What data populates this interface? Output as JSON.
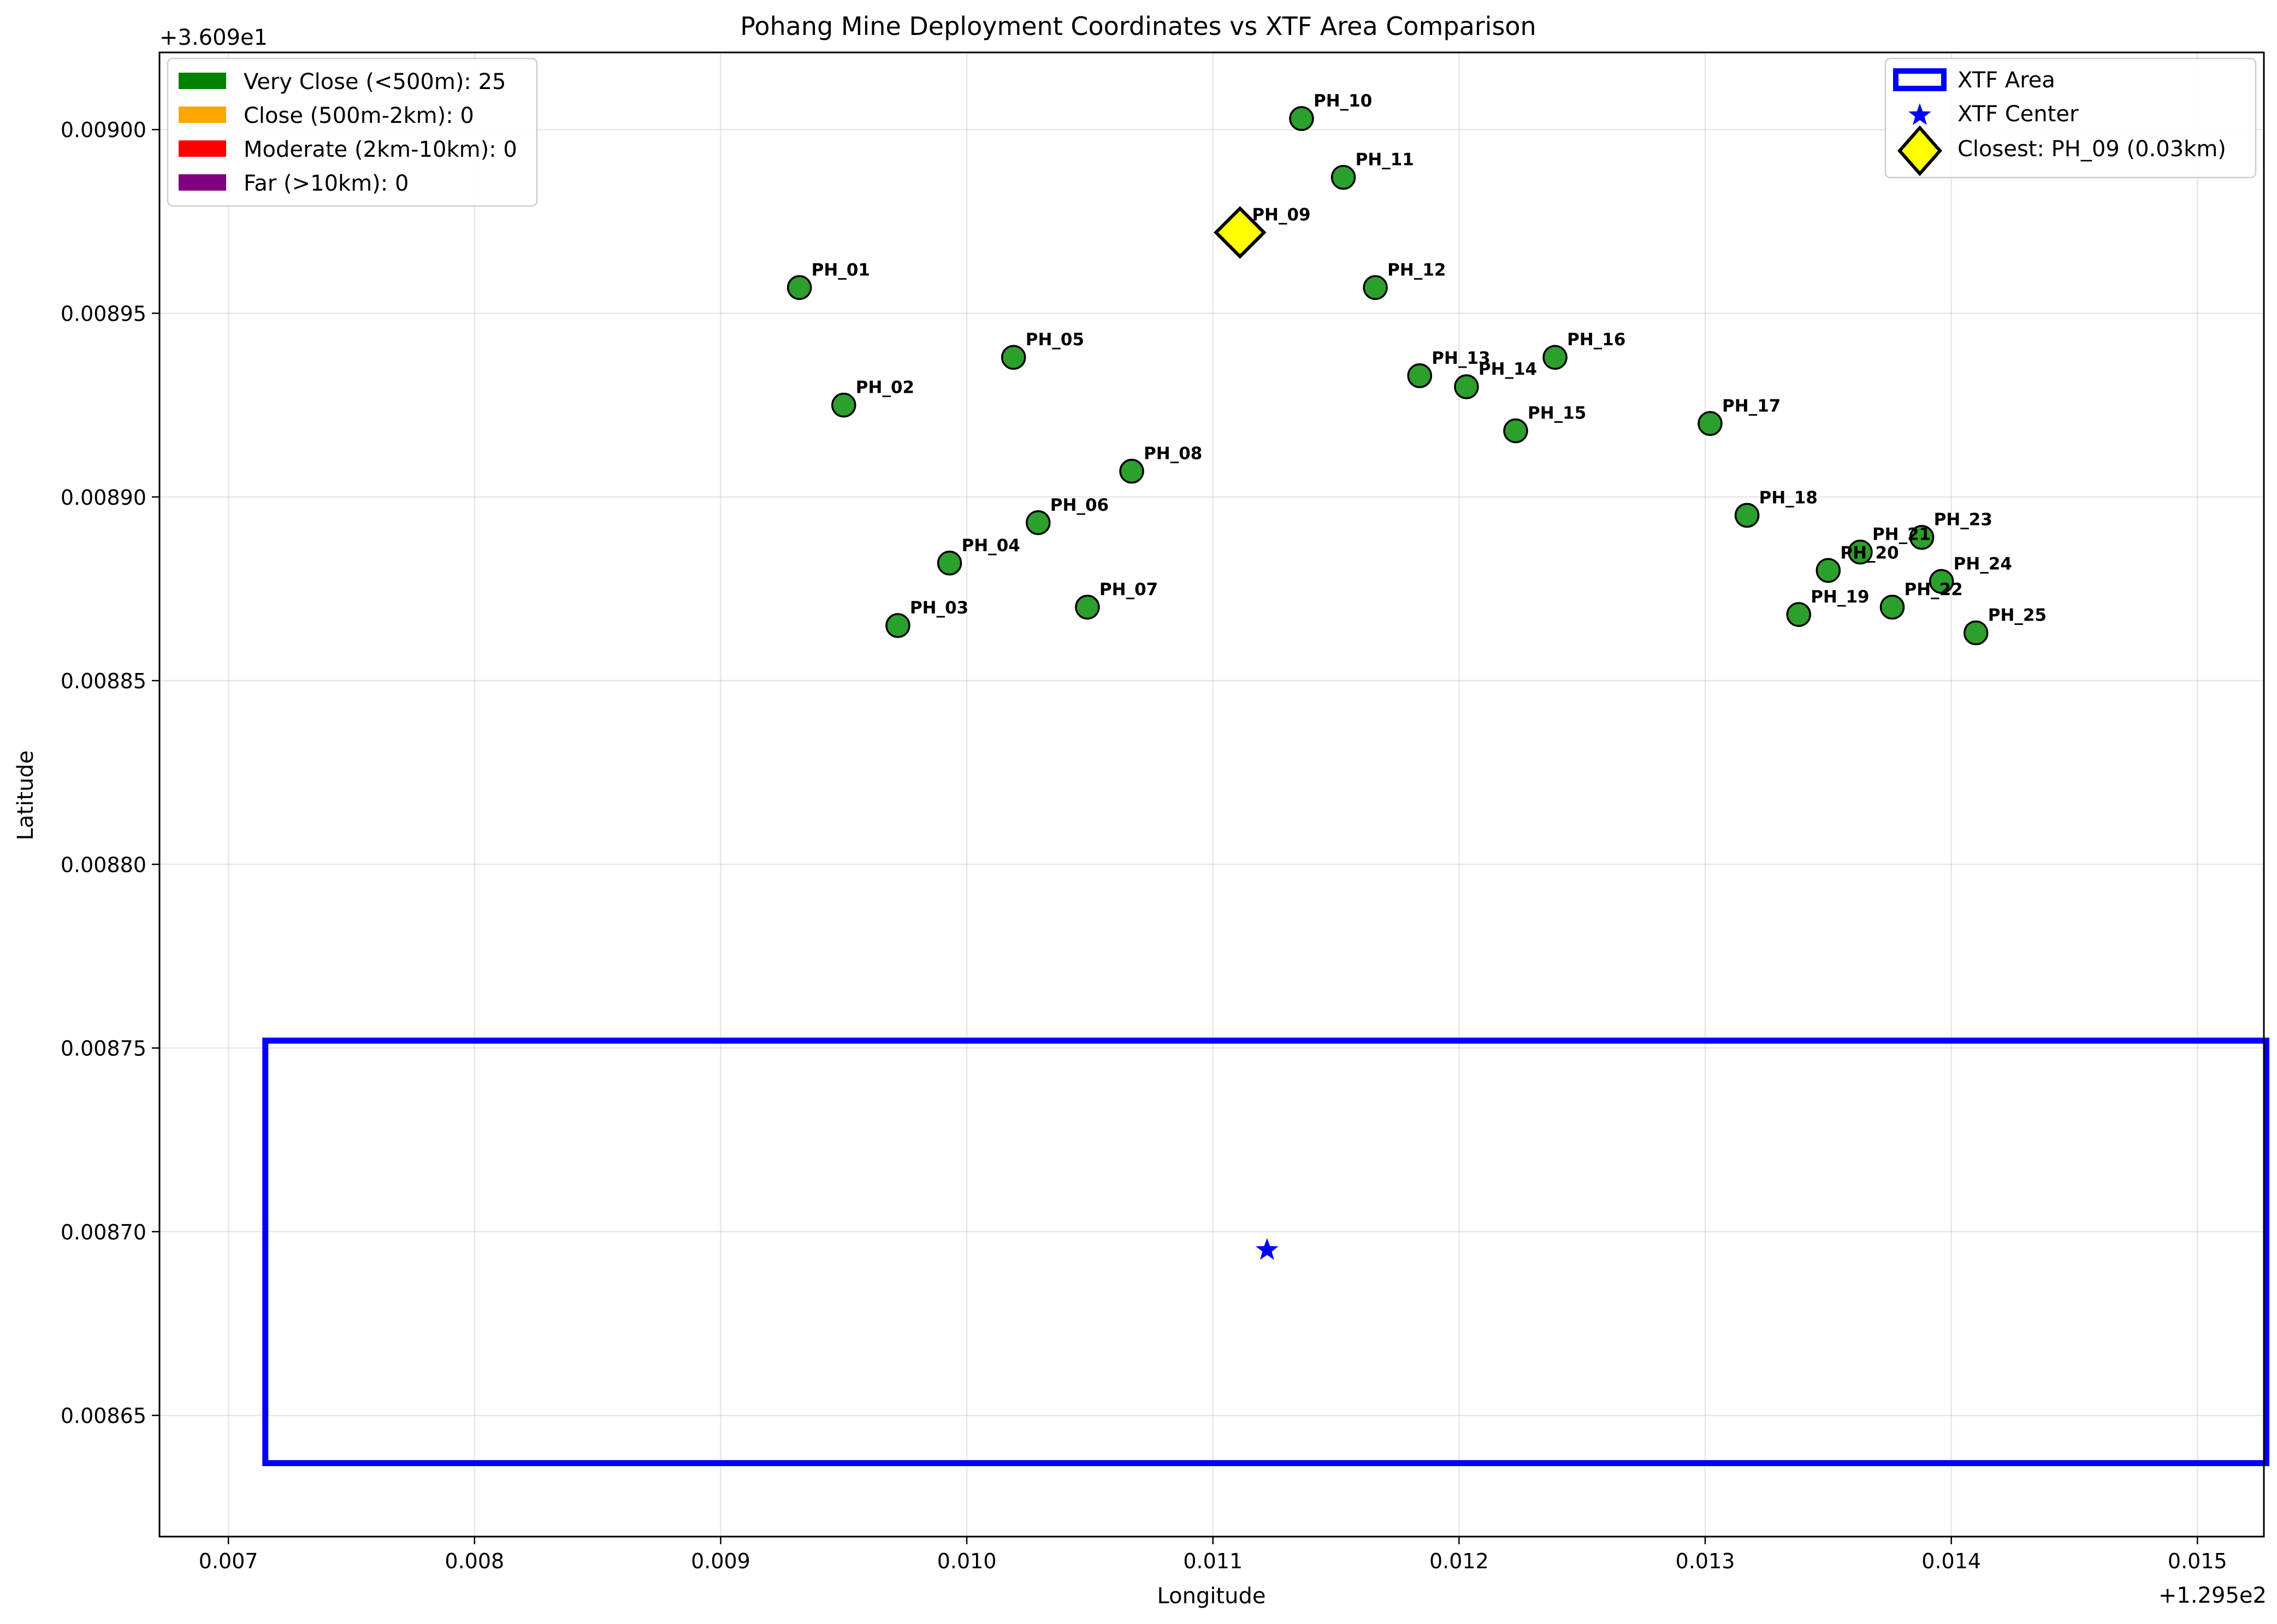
{
  "chart_data": {
    "type": "scatter",
    "title": "Pohang Mine Deployment Coordinates vs XTF Area Comparison",
    "xlabel": "Longitude",
    "ylabel": "Latitude",
    "x_offset_label": "+1.295e2",
    "y_offset_label": "+3.609e1",
    "xlim": [
      0.00672,
      0.01527
    ],
    "ylim": [
      0.008617,
      0.009021
    ],
    "xticks": [
      0.007,
      0.008,
      0.009,
      0.01,
      0.011,
      0.012,
      0.013,
      0.014,
      0.015
    ],
    "xtick_labels": [
      "0.007",
      "0.008",
      "0.009",
      "0.010",
      "0.011",
      "0.012",
      "0.013",
      "0.014",
      "0.015"
    ],
    "yticks": [
      0.00865,
      0.0087,
      0.00875,
      0.0088,
      0.00885,
      0.0089,
      0.00895,
      0.009
    ],
    "ytick_labels": [
      "0.00865",
      "0.00870",
      "0.00875",
      "0.00880",
      "0.00885",
      "0.00890",
      "0.00895",
      "0.00900"
    ],
    "grid": true,
    "points": [
      {
        "label": "PH_01",
        "x": 0.00932,
        "y": 0.008957
      },
      {
        "label": "PH_02",
        "x": 0.0095,
        "y": 0.008925
      },
      {
        "label": "PH_03",
        "x": 0.00972,
        "y": 0.008865
      },
      {
        "label": "PH_04",
        "x": 0.00993,
        "y": 0.008882
      },
      {
        "label": "PH_05",
        "x": 0.01019,
        "y": 0.008938
      },
      {
        "label": "PH_06",
        "x": 0.01029,
        "y": 0.008893
      },
      {
        "label": "PH_07",
        "x": 0.01049,
        "y": 0.00887
      },
      {
        "label": "PH_08",
        "x": 0.01067,
        "y": 0.008907
      },
      {
        "label": "PH_09",
        "x": 0.01111,
        "y": 0.008972
      },
      {
        "label": "PH_10",
        "x": 0.01136,
        "y": 0.009003
      },
      {
        "label": "PH_11",
        "x": 0.01153,
        "y": 0.008987
      },
      {
        "label": "PH_12",
        "x": 0.01166,
        "y": 0.008957
      },
      {
        "label": "PH_13",
        "x": 0.01184,
        "y": 0.008933
      },
      {
        "label": "PH_14",
        "x": 0.01203,
        "y": 0.00893
      },
      {
        "label": "PH_15",
        "x": 0.01223,
        "y": 0.008918
      },
      {
        "label": "PH_16",
        "x": 0.01239,
        "y": 0.008938
      },
      {
        "label": "PH_17",
        "x": 0.01302,
        "y": 0.00892
      },
      {
        "label": "PH_18",
        "x": 0.01317,
        "y": 0.008895
      },
      {
        "label": "PH_19",
        "x": 0.01338,
        "y": 0.008868
      },
      {
        "label": "PH_20",
        "x": 0.0135,
        "y": 0.00888
      },
      {
        "label": "PH_21",
        "x": 0.01363,
        "y": 0.008885
      },
      {
        "label": "PH_22",
        "x": 0.01376,
        "y": 0.00887
      },
      {
        "label": "PH_23",
        "x": 0.01388,
        "y": 0.008889
      },
      {
        "label": "PH_24",
        "x": 0.01396,
        "y": 0.008877
      },
      {
        "label": "PH_25",
        "x": 0.0141,
        "y": 0.008863
      }
    ],
    "point_color": "#2ca02c",
    "xtf_area": {
      "x_min": 0.00715,
      "x_max": 0.01528,
      "y_min": 0.008637,
      "y_max": 0.008752,
      "color": "#0000ff"
    },
    "xtf_center": {
      "x": 0.01122,
      "y": 0.008695,
      "color": "#0000ff"
    },
    "closest": {
      "label": "PH_09",
      "x": 0.01111,
      "y": 0.008972,
      "color": "#ffff00"
    },
    "legend_left": {
      "placement": "upper-left",
      "entries": [
        {
          "label": "Very Close (<500m): 25",
          "color": "#008000"
        },
        {
          "label": "Close (500m-2km): 0",
          "color": "#ffa500"
        },
        {
          "label": "Moderate (2km-10km): 0",
          "color": "#ff0000"
        },
        {
          "label": "Far (>10km): 0",
          "color": "#800080"
        }
      ]
    },
    "legend_right": {
      "placement": "upper-right",
      "entries": [
        {
          "label": "XTF Area",
          "marker": "rect"
        },
        {
          "label": "XTF Center",
          "marker": "star"
        },
        {
          "label": "Closest: PH_09 (0.03km)",
          "marker": "diamond"
        }
      ]
    }
  }
}
